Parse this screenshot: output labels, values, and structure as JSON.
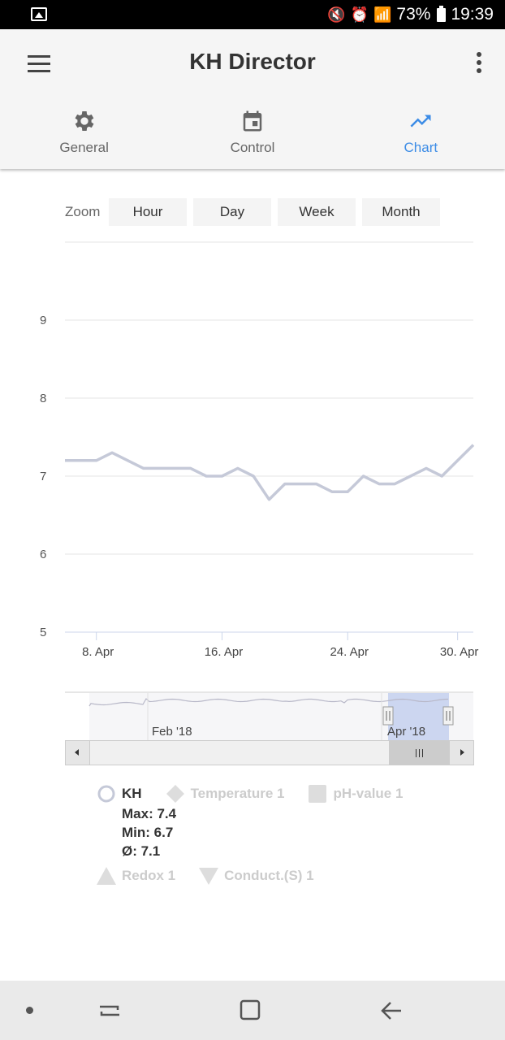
{
  "status": {
    "battery": "73%",
    "time": "19:39"
  },
  "header": {
    "title": "KH Director"
  },
  "tabs": [
    {
      "label": "General",
      "icon": "gear-icon",
      "active": false
    },
    {
      "label": "Control",
      "icon": "calendar-icon",
      "active": false
    },
    {
      "label": "Chart",
      "icon": "trending-up-icon",
      "active": true
    }
  ],
  "zoom": {
    "label": "Zoom",
    "buttons": [
      "Hour",
      "Day",
      "Week",
      "Month"
    ]
  },
  "chart_data": {
    "type": "line",
    "yticks": [
      5,
      6,
      7,
      8,
      9
    ],
    "ylim": [
      5,
      10
    ],
    "xticks": [
      "8. Apr",
      "16. Apr",
      "24. Apr",
      "30. Apr"
    ],
    "series": [
      {
        "name": "KH",
        "color": "#c5c9d8",
        "x": [
          6,
          7,
          8,
          9,
          10,
          11,
          12,
          13,
          14,
          15,
          16,
          17,
          18,
          19,
          20,
          21,
          22,
          23,
          24,
          25,
          26,
          27,
          28,
          29,
          30,
          31,
          32
        ],
        "values": [
          7.2,
          7.2,
          7.2,
          7.3,
          7.2,
          7.1,
          7.1,
          7.1,
          7.1,
          7.0,
          7.0,
          7.1,
          7.0,
          6.7,
          6.9,
          6.9,
          6.9,
          6.8,
          6.8,
          7.0,
          6.9,
          6.9,
          7.0,
          7.1,
          7.0,
          7.2,
          7.4
        ]
      }
    ],
    "navigator": {
      "labels": [
        "Feb '18",
        "Apr '18"
      ]
    }
  },
  "legend": {
    "kh": {
      "name": "KH",
      "max": "Max: 7.4",
      "min": "Min: 6.7",
      "avg": "Ø: 7.1"
    },
    "items": [
      {
        "name": "Temperature 1",
        "icon": "diamond-icon"
      },
      {
        "name": "pH-value 1",
        "icon": "square-icon"
      },
      {
        "name": "Redox 1",
        "icon": "triangle-icon"
      },
      {
        "name": "Conduct.(S) 1",
        "icon": "triangle-down-icon"
      }
    ]
  },
  "colors": {
    "accent": "#3c8ce6",
    "series": "#c5c9d8",
    "navigator_selection": "#ccd6f0"
  }
}
